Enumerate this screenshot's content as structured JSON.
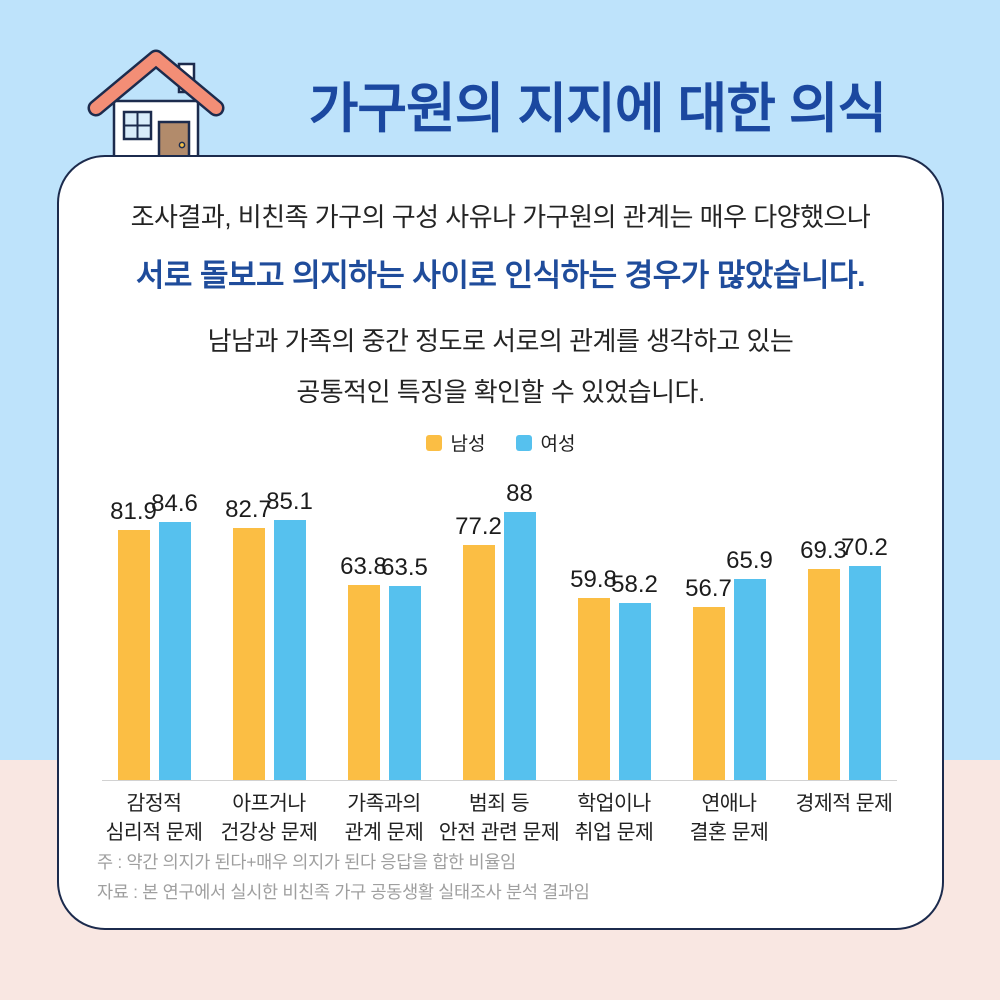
{
  "page": {
    "title": "가구원의 지지에 대한 의식",
    "colors": {
      "background_top": "#BEE3FB",
      "background_bottom": "#F9E7E2",
      "title_blue": "#1B48A0",
      "highlight_blue": "#1F4C9B",
      "card_border_navy": "#1C2B4D",
      "male_orange": "#FBBE44",
      "female_blue": "#56C1EE",
      "roof_coral": "#F38E76",
      "door_brown": "#B28B6B"
    }
  },
  "intro": {
    "line1": "조사결과, 비친족 가구의 구성 사유나 가구원의 관계는 매우 다양했으나",
    "line2": "서로 돌보고 의지하는 사이로 인식하는 경우가 많았습니다.",
    "line3": "남남과 가족의 중간 정도로 서로의 관계를 생각하고 있는",
    "line4": "공통적인 특징을 확인할 수 있었습니다."
  },
  "chart_data": {
    "type": "bar",
    "categories": [
      [
        "감정적",
        "심리적 문제"
      ],
      [
        "아프거나",
        "건강상 문제"
      ],
      [
        "가족과의",
        "관계 문제"
      ],
      [
        "범죄 등",
        "안전 관련 문제"
      ],
      [
        "학업이나",
        "취업 문제"
      ],
      [
        "연애나",
        "결혼 문제"
      ],
      [
        "경제적 문제"
      ]
    ],
    "series": [
      {
        "name": "남성",
        "color": "#FBBE44",
        "values": [
          81.9,
          82.7,
          63.8,
          77.2,
          59.8,
          56.7,
          69.3
        ]
      },
      {
        "name": "여성",
        "color": "#56C1EE",
        "values": [
          84.6,
          85.1,
          63.5,
          88,
          58.2,
          65.9,
          70.2
        ]
      }
    ],
    "ylim": [
      0,
      100
    ],
    "grid": false,
    "legend_position": "top",
    "unit": "%"
  },
  "notes": {
    "note1": "주 : 약간 의지가 된다+매우 의지가 된다 응답을 합한 비율임",
    "note2": "자료 : 본 연구에서 실시한 비친족 가구 공동생활 실태조사 분석 결과임"
  }
}
